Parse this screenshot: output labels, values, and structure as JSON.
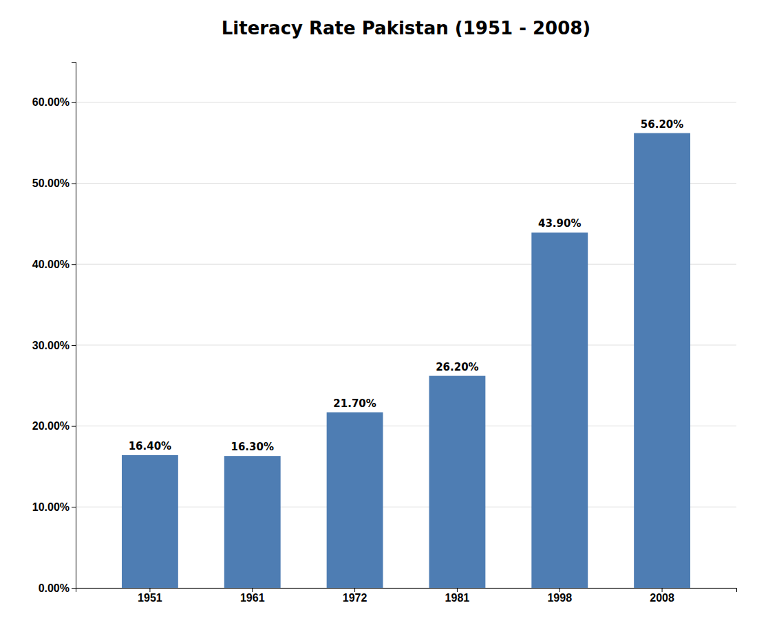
{
  "chart_data": {
    "type": "bar",
    "title": "Literacy Rate Pakistan (1951 - 2008)",
    "categories": [
      "1951",
      "1961",
      "1972",
      "1981",
      "1998",
      "2008"
    ],
    "values": [
      16.4,
      16.3,
      21.7,
      26.2,
      43.9,
      56.2
    ],
    "value_labels": [
      "16.40%",
      "16.30%",
      "21.70%",
      "26.20%",
      "43.90%",
      "56.20%"
    ],
    "color": "#4E7DB3",
    "ylim": [
      0,
      65
    ],
    "yticks": [
      {
        "value": 0,
        "label": "0.00%"
      },
      {
        "value": 10,
        "label": "10.00%"
      },
      {
        "value": 20,
        "label": "20.00%"
      },
      {
        "value": 30,
        "label": "30.00%"
      },
      {
        "value": 40,
        "label": "40.00%"
      },
      {
        "value": 50,
        "label": "50.00%"
      },
      {
        "value": 60,
        "label": "60.00%"
      }
    ],
    "grid": true,
    "data_labels": true
  }
}
